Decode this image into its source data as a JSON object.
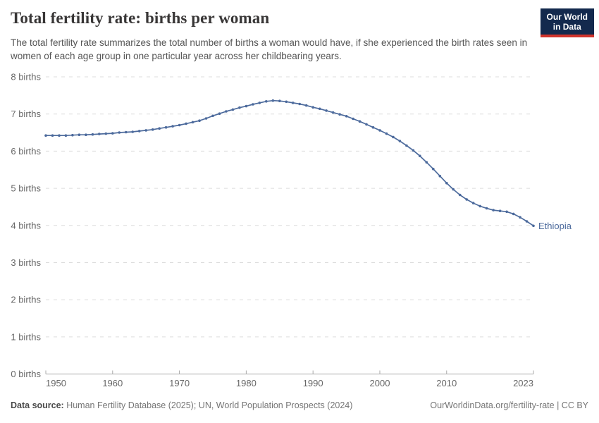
{
  "header": {
    "title": "Total fertility rate: births per woman",
    "subtitle": "The total fertility rate summarizes the total number of births a woman would have, if she experienced the birth rates seen in women of each age group in one particular year across her childbearing years.",
    "logo": {
      "line1": "Our World",
      "line2": "in Data",
      "bg_color": "#13294d",
      "accent_color": "#d0342c"
    }
  },
  "chart_data": {
    "type": "line",
    "title": "Total fertility rate: births per woman",
    "xlabel": "",
    "ylabel": "births",
    "xlim": [
      1950,
      2023
    ],
    "ylim": [
      0,
      8
    ],
    "grid": "horizontal-dashed",
    "legend_position": "end-of-line-label",
    "x_ticks": [
      1950,
      1960,
      1970,
      1980,
      1990,
      2000,
      2010,
      2023
    ],
    "x_tick_labels": [
      "1950",
      "1960",
      "1970",
      "1980",
      "1990",
      "2000",
      "2010",
      "2023"
    ],
    "y_ticks": [
      0,
      1,
      2,
      3,
      4,
      5,
      6,
      7,
      8
    ],
    "y_tick_labels": [
      "0 births",
      "1 births",
      "2 births",
      "3 births",
      "4 births",
      "5 births",
      "6 births",
      "7 births",
      "8 births"
    ],
    "series": [
      {
        "name": "Ethiopia",
        "color": "#4c6a9c",
        "x": [
          1950,
          1951,
          1952,
          1953,
          1954,
          1955,
          1956,
          1957,
          1958,
          1959,
          1960,
          1961,
          1962,
          1963,
          1964,
          1965,
          1966,
          1967,
          1968,
          1969,
          1970,
          1971,
          1972,
          1973,
          1974,
          1975,
          1976,
          1977,
          1978,
          1979,
          1980,
          1981,
          1982,
          1983,
          1984,
          1985,
          1986,
          1987,
          1988,
          1989,
          1990,
          1991,
          1992,
          1993,
          1994,
          1995,
          1996,
          1997,
          1998,
          1999,
          2000,
          2001,
          2002,
          2003,
          2004,
          2005,
          2006,
          2007,
          2008,
          2009,
          2010,
          2011,
          2012,
          2013,
          2014,
          2015,
          2016,
          2017,
          2018,
          2019,
          2020,
          2021,
          2022,
          2023
        ],
        "values": [
          6.42,
          6.42,
          6.42,
          6.42,
          6.43,
          6.44,
          6.44,
          6.45,
          6.46,
          6.47,
          6.48,
          6.5,
          6.51,
          6.52,
          6.54,
          6.56,
          6.58,
          6.61,
          6.64,
          6.67,
          6.7,
          6.74,
          6.78,
          6.82,
          6.88,
          6.95,
          7.01,
          7.07,
          7.12,
          7.17,
          7.21,
          7.26,
          7.3,
          7.34,
          7.36,
          7.35,
          7.33,
          7.3,
          7.27,
          7.23,
          7.18,
          7.14,
          7.09,
          7.04,
          6.99,
          6.94,
          6.87,
          6.8,
          6.72,
          6.64,
          6.56,
          6.47,
          6.38,
          6.27,
          6.15,
          6.02,
          5.87,
          5.7,
          5.52,
          5.33,
          5.14,
          4.97,
          4.82,
          4.7,
          4.6,
          4.52,
          4.46,
          4.41,
          4.39,
          4.37,
          4.31,
          4.22,
          4.11,
          3.99
        ]
      }
    ]
  },
  "footer": {
    "source_label": "Data source:",
    "source_text": " Human Fertility Database (2025); UN, World Population Prospects (2024)",
    "rights": "OurWorldinData.org/fertility-rate | CC BY"
  },
  "colors": {
    "series_blue": "#4c6a9c",
    "gridline": "#dcdcdc",
    "axis": "#a8a8a8",
    "tick_text": "#666666",
    "title_text": "#383636",
    "subtitle_text": "#555555",
    "footer_text": "#757575"
  }
}
